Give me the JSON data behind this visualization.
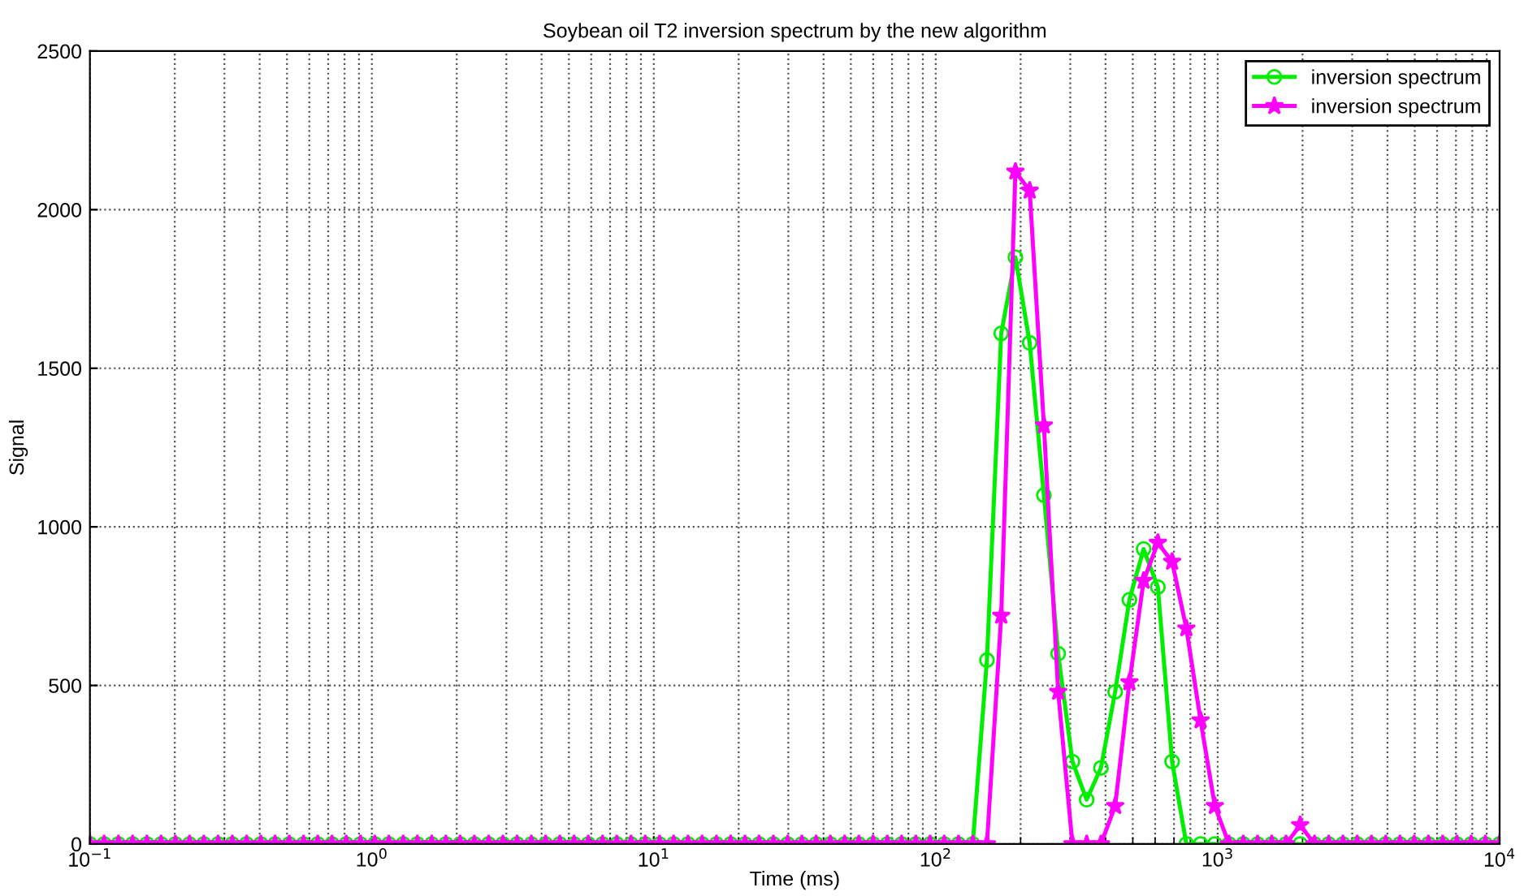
{
  "chart_data": {
    "type": "line",
    "title": "Soybean oil T2 inversion spectrum by the new algorithm",
    "xlabel": "Time (ms)",
    "ylabel": "Signal",
    "x": [
      0.1,
      0.1123,
      0.1262,
      0.1417,
      0.1592,
      0.1788,
      0.2009,
      0.2256,
      0.2535,
      0.2848,
      0.3199,
      0.3594,
      0.4037,
      0.4535,
      0.5094,
      0.5722,
      0.6428,
      0.7221,
      0.8111,
      0.9112,
      1.024,
      1.149,
      1.292,
      1.45,
      1.63,
      1.83,
      2.056,
      2.309,
      2.595,
      2.915,
      3.274,
      3.679,
      4.132,
      4.642,
      5.214,
      5.857,
      6.579,
      7.391,
      8.302,
      9.326,
      10.48,
      11.76,
      13.22,
      14.84,
      16.68,
      18.73,
      21.05,
      23.63,
      26.56,
      29.84,
      33.51,
      37.65,
      42.29,
      47.51,
      53.37,
      59.94,
      67.34,
      75.65,
      84.97,
      95.46,
      107.2,
      120.4,
      135.3,
      151.9,
      170.7,
      191.7,
      215.4,
      241.9,
      271.8,
      305.4,
      343.0,
      385.4,
      432.9,
      486.3,
      546.2,
      613.5,
      689.3,
      774.3,
      869.7,
      977.0,
      1097,
      1233,
      1385,
      1555,
      1747,
      1962,
      2205,
      2476,
      2782,
      3126,
      3511,
      3945,
      4431,
      4977,
      5591,
      6280,
      7055,
      7925,
      8902,
      10000
    ],
    "series": [
      {
        "name": "inversion spectrum",
        "color": "#00ee00",
        "marker": "circle",
        "values": [
          0,
          0,
          0,
          0,
          0,
          0,
          0,
          0,
          0,
          0,
          0,
          0,
          0,
          0,
          0,
          0,
          0,
          0,
          0,
          0,
          0,
          0,
          0,
          0,
          0,
          0,
          0,
          0,
          0,
          0,
          0,
          0,
          0,
          0,
          0,
          0,
          0,
          0,
          0,
          0,
          0,
          0,
          0,
          0,
          0,
          0,
          0,
          0,
          0,
          0,
          0,
          0,
          0,
          0,
          0,
          0,
          0,
          0,
          0,
          0,
          0,
          0,
          0,
          580,
          1610,
          1850,
          1580,
          1100,
          600,
          260,
          140,
          240,
          480,
          770,
          930,
          810,
          260,
          0,
          0,
          0,
          0,
          0,
          0,
          0,
          0,
          0,
          0,
          0,
          0,
          0,
          0,
          0,
          0,
          0,
          0,
          0,
          0,
          0,
          0,
          0
        ]
      },
      {
        "name": "inversion spectrum",
        "color": "#ff00ff",
        "marker": "star",
        "values": [
          0,
          0,
          0,
          0,
          0,
          0,
          0,
          0,
          0,
          0,
          0,
          0,
          0,
          0,
          0,
          0,
          0,
          0,
          0,
          0,
          0,
          0,
          0,
          0,
          0,
          0,
          0,
          0,
          0,
          0,
          0,
          0,
          0,
          0,
          0,
          0,
          0,
          0,
          0,
          0,
          0,
          0,
          0,
          0,
          0,
          0,
          0,
          0,
          0,
          0,
          0,
          0,
          0,
          0,
          0,
          0,
          0,
          0,
          0,
          0,
          0,
          0,
          0,
          0,
          720,
          2120,
          2060,
          1320,
          480,
          0,
          0,
          0,
          120,
          510,
          830,
          950,
          890,
          680,
          390,
          120,
          0,
          0,
          0,
          0,
          0,
          60,
          0,
          0,
          0,
          0,
          0,
          0,
          0,
          0,
          0,
          0,
          0,
          0,
          0,
          0
        ]
      }
    ],
    "log": "x",
    "xlim": [
      0.1,
      10000
    ],
    "xticks": [
      {
        "value": 0.1,
        "label": "10$^{−1}$"
      },
      {
        "value": 1,
        "label": "10$^{0}$"
      },
      {
        "value": 10,
        "label": "10$^{1}$"
      },
      {
        "value": 100,
        "label": "10$^{2}$"
      },
      {
        "value": 1000,
        "label": "10$^{3}$"
      },
      {
        "value": 10000,
        "label": "10$^{4}$"
      }
    ],
    "ylim": [
      0,
      2500
    ],
    "yticks": [
      0,
      500,
      1000,
      1500,
      2000,
      2500
    ],
    "grid": true,
    "legend": "top right",
    "line_style": "solid"
  }
}
